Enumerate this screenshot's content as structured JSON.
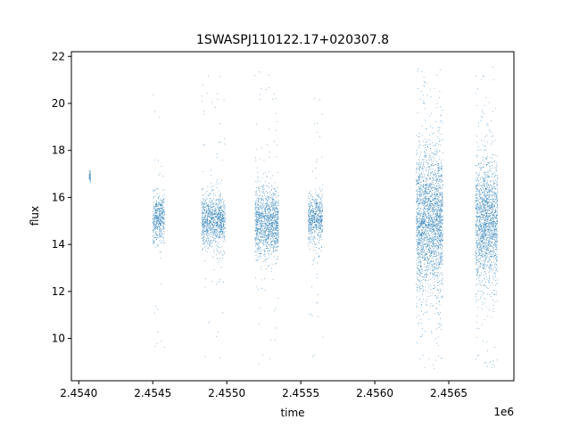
{
  "chart_data": {
    "type": "scatter",
    "title": "1SWASPJ110122.17+020307.8",
    "xlabel": "time",
    "ylabel": "flux",
    "x_offset_label": "1e6",
    "x_scale_note": "x values are in units of 1e6",
    "xlim": [
      2.45395,
      2.45694
    ],
    "ylim": [
      8.2,
      22.2
    ],
    "xticks": [
      2.454,
      2.4545,
      2.455,
      2.4555,
      2.456,
      2.4565
    ],
    "xtick_labels": [
      "2.4540",
      "2.4545",
      "2.4550",
      "2.4555",
      "2.4560",
      "2.4565"
    ],
    "yticks": [
      10,
      12,
      14,
      16,
      18,
      20,
      22
    ],
    "ytick_labels": [
      "10",
      "12",
      "14",
      "16",
      "18",
      "20",
      "22"
    ],
    "grid": false,
    "legend": "none",
    "marker_color": "#1f77b4",
    "clusters": [
      {
        "x_start": 2.45407,
        "x_end": 2.45408,
        "center": 16.9,
        "spread": 0.15,
        "y_min": 16.6,
        "y_max": 17.2
      },
      {
        "x_start": 2.4545,
        "x_end": 2.45458,
        "center": 15.1,
        "spread": 0.5,
        "y_min": 8.9,
        "y_max": 20.7
      },
      {
        "x_start": 2.45483,
        "x_end": 2.45499,
        "center": 15.0,
        "spread": 0.55,
        "y_min": 9.0,
        "y_max": 21.3
      },
      {
        "x_start": 2.45519,
        "x_end": 2.45535,
        "center": 14.9,
        "spread": 0.75,
        "y_min": 8.9,
        "y_max": 21.6
      },
      {
        "x_start": 2.45555,
        "x_end": 2.45565,
        "center": 15.1,
        "spread": 0.5,
        "y_min": 8.8,
        "y_max": 20.8
      },
      {
        "x_start": 2.45628,
        "x_end": 2.45646,
        "center": 15.1,
        "spread": 1.5,
        "y_min": 8.7,
        "y_max": 21.6
      },
      {
        "x_start": 2.45668,
        "x_end": 2.45683,
        "center": 15.0,
        "spread": 1.3,
        "y_min": 8.7,
        "y_max": 21.6
      }
    ]
  }
}
